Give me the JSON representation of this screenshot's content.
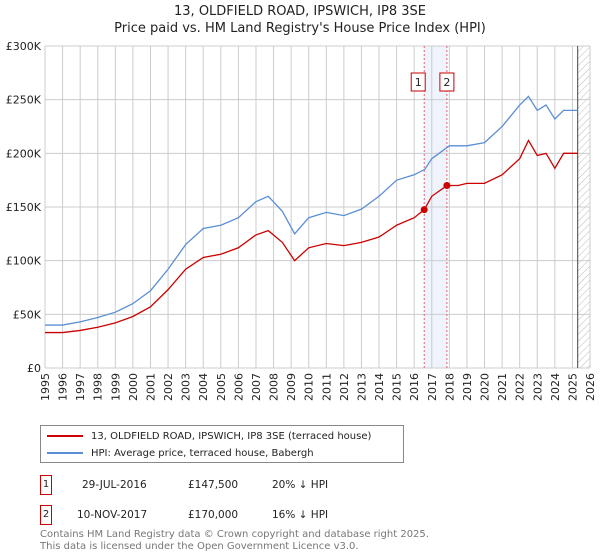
{
  "chart_data": {
    "type": "line",
    "title": "13, OLDFIELD ROAD, IPSWICH, IP8 3SE",
    "subtitle": "Price paid vs. HM Land Registry's House Price Index (HPI)",
    "xlim": [
      1995,
      2026
    ],
    "ylim": [
      0,
      300000
    ],
    "yticks": [
      {
        "v": 0,
        "label": "£0"
      },
      {
        "v": 50000,
        "label": "£50K"
      },
      {
        "v": 100000,
        "label": "£100K"
      },
      {
        "v": 150000,
        "label": "£150K"
      },
      {
        "v": 200000,
        "label": "£200K"
      },
      {
        "v": 250000,
        "label": "£250K"
      },
      {
        "v": 300000,
        "label": "£300K"
      }
    ],
    "xticks": [
      "1995",
      "1996",
      "1997",
      "1998",
      "1999",
      "2000",
      "2001",
      "2002",
      "2003",
      "2004",
      "2005",
      "2006",
      "2007",
      "2008",
      "2009",
      "2010",
      "2011",
      "2012",
      "2013",
      "2014",
      "2015",
      "2016",
      "2017",
      "2018",
      "2019",
      "2020",
      "2021",
      "2022",
      "2023",
      "2024",
      "2025",
      "2026"
    ],
    "grid": true,
    "series": [
      {
        "name": "13, OLDFIELD ROAD, IPSWICH, IP8 3SE (terraced house)",
        "color": "#cc0000",
        "x": [
          1995,
          1996,
          1997,
          1998,
          1999,
          2000,
          2001,
          2002,
          2003,
          2004,
          2005,
          2006,
          2007,
          2007.7,
          2008.5,
          2009.2,
          2010,
          2011,
          2012,
          2013,
          2014,
          2015,
          2016,
          2016.57,
          2017,
          2017.86,
          2018.5,
          2019,
          2020,
          2021,
          2022,
          2022.5,
          2023,
          2023.5,
          2024,
          2024.5,
          2025.3
        ],
        "y": [
          33000,
          33000,
          35000,
          38000,
          42000,
          48000,
          57000,
          73000,
          92000,
          103000,
          106000,
          112000,
          124000,
          128000,
          117000,
          100000,
          112000,
          116000,
          114000,
          117000,
          122000,
          133000,
          140000,
          147500,
          160000,
          170000,
          170000,
          172000,
          172000,
          180000,
          195000,
          212000,
          198000,
          200000,
          186000,
          200000,
          200000
        ]
      },
      {
        "name": "HPI: Average price, terraced house, Babergh",
        "color": "#5b8fd4",
        "x": [
          1995,
          1996,
          1997,
          1998,
          1999,
          2000,
          2001,
          2002,
          2003,
          2004,
          2005,
          2006,
          2007,
          2007.7,
          2008.5,
          2009.2,
          2010,
          2011,
          2012,
          2013,
          2014,
          2015,
          2016,
          2016.6,
          2017,
          2018,
          2019,
          2020,
          2021,
          2022,
          2022.5,
          2023,
          2023.5,
          2024,
          2024.5,
          2025.3
        ],
        "y": [
          40000,
          40000,
          43000,
          47000,
          52000,
          60000,
          72000,
          92000,
          115000,
          130000,
          133000,
          140000,
          155000,
          160000,
          146000,
          125000,
          140000,
          145000,
          142000,
          148000,
          160000,
          175000,
          180000,
          185000,
          195000,
          207000,
          207000,
          210000,
          225000,
          245000,
          253000,
          240000,
          245000,
          232000,
          240000,
          240000
        ]
      }
    ],
    "sales": [
      {
        "label": "1",
        "x": 2016.57,
        "y": 147500
      },
      {
        "label": "2",
        "x": 2017.86,
        "y": 170000
      }
    ],
    "forecast_from": 2025.3
  },
  "legend": {
    "items": [
      "13, OLDFIELD ROAD, IPSWICH, IP8 3SE (terraced house)",
      "HPI: Average price, terraced house, Babergh"
    ]
  },
  "transactions": [
    {
      "num": "1",
      "date": "29-JUL-2016",
      "price": "£147,500",
      "hpi": "20% ↓ HPI"
    },
    {
      "num": "2",
      "date": "10-NOV-2017",
      "price": "£170,000",
      "hpi": "16% ↓ HPI"
    }
  ],
  "footer": [
    "Contains HM Land Registry data © Crown copyright and database right 2025.",
    "This data is licensed under the Open Government Licence v3.0."
  ]
}
